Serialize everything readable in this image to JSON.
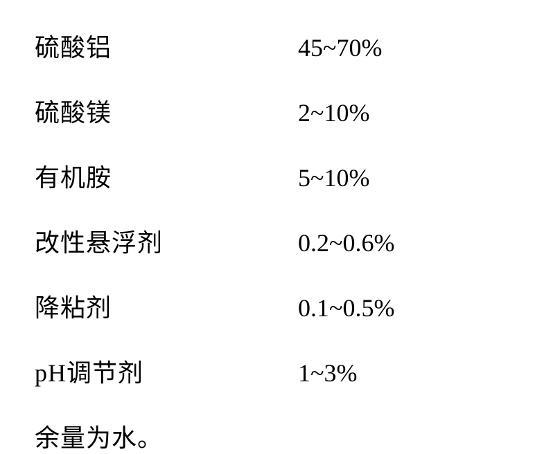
{
  "rows": [
    {
      "label": "硫酸铝",
      "value": "45~70%"
    },
    {
      "label": "硫酸镁",
      "value": "2~10%"
    },
    {
      "label": "有机胺",
      "value": "5~10%"
    },
    {
      "label": "改性悬浮剂",
      "value": "0.2~0.6%"
    },
    {
      "label": "降粘剂",
      "value": "0.1~0.5%"
    },
    {
      "label": "pH调节剂",
      "value": "1~3%"
    }
  ],
  "footer": "余量为水。"
}
